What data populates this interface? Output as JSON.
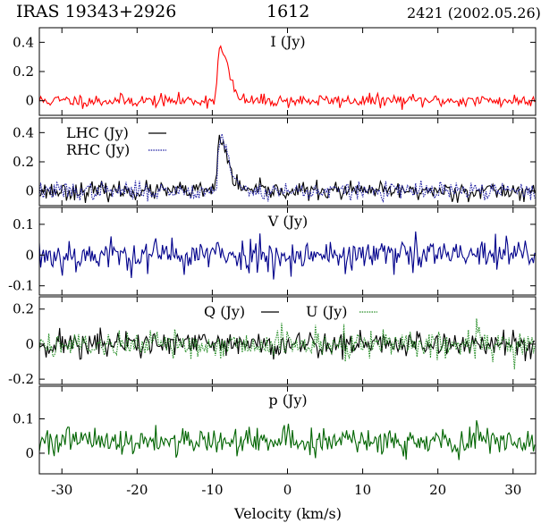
{
  "header": {
    "source": "IRAS 19343+2926",
    "line": "1612",
    "obs": "2421 (2002.05.26)"
  },
  "chart_data": [
    {
      "type": "line",
      "panel": "I",
      "title": "I (Jy)",
      "ylim": [
        -0.1,
        0.5
      ],
      "yticks": [
        0,
        0.2,
        0.4
      ],
      "yticklabels": [
        "0",
        "0.2",
        "0.4"
      ],
      "xlim": [
        -33,
        33
      ],
      "series": [
        {
          "name": "",
          "color": "#ff0000",
          "style": "solid",
          "baseline": 0.0,
          "noise": 0.022,
          "seed": 11,
          "peaks": [
            {
              "center": -9.1,
              "amp": 0.34,
              "width_left": 0.25,
              "width_right": 0.9
            },
            {
              "center": -8.0,
              "amp": 0.08,
              "width_left": 0.5,
              "width_right": 0.9
            }
          ]
        }
      ]
    },
    {
      "type": "line",
      "panel": "LHC/RHC",
      "title": "",
      "ylim": [
        -0.1,
        0.5
      ],
      "yticks": [
        0,
        0.2,
        0.4
      ],
      "yticklabels": [
        "0",
        "0.2",
        "0.4"
      ],
      "xlim": [
        -33,
        33
      ],
      "series": [
        {
          "name": "LHC (Jy)",
          "color": "#000000",
          "style": "solid",
          "baseline": 0.0,
          "noise": 0.03,
          "seed": 23,
          "peaks": [
            {
              "center": -9.1,
              "amp": 0.33,
              "width_left": 0.25,
              "width_right": 0.9
            },
            {
              "center": -8.0,
              "amp": 0.08,
              "width_left": 0.5,
              "width_right": 0.9
            }
          ]
        },
        {
          "name": "RHC (Jy)",
          "color": "#1a1aa0",
          "style": "dotted",
          "baseline": 0.0,
          "noise": 0.03,
          "seed": 37,
          "peaks": [
            {
              "center": -9.0,
              "amp": 0.34,
              "width_left": 0.25,
              "width_right": 0.9
            },
            {
              "center": -7.9,
              "amp": 0.09,
              "width_left": 0.5,
              "width_right": 0.9
            }
          ]
        }
      ]
    },
    {
      "type": "line",
      "panel": "V",
      "title": "V (Jy)",
      "ylim": [
        -0.13,
        0.155
      ],
      "yticks": [
        -0.1,
        0,
        0.1
      ],
      "yticklabels": [
        "-0.1",
        "0",
        "0.1"
      ],
      "xlim": [
        -33,
        33
      ],
      "series": [
        {
          "name": "",
          "color": "#00008b",
          "style": "solid",
          "baseline": 0.0,
          "noise": 0.028,
          "seed": 53,
          "peaks": []
        }
      ]
    },
    {
      "type": "line",
      "panel": "Q/U",
      "title": "",
      "ylim": [
        -0.23,
        0.27
      ],
      "yticks": [
        -0.2,
        0,
        0.2
      ],
      "yticklabels": [
        "-0.2",
        "0",
        "0.2"
      ],
      "xlim": [
        -33,
        33
      ],
      "series": [
        {
          "name": "Q (Jy)",
          "color": "#000000",
          "style": "solid",
          "baseline": 0.0,
          "noise": 0.04,
          "seed": 71,
          "peaks": []
        },
        {
          "name": "U (Jy)",
          "color": "#228b22",
          "style": "dotted",
          "baseline": 0.0,
          "noise": 0.04,
          "seed": 89,
          "peaks": [
            {
              "center": 25.3,
              "amp": 0.14,
              "width_left": 0.15,
              "width_right": 0.15
            }
          ]
        }
      ]
    },
    {
      "type": "line",
      "panel": "p",
      "title": "p (Jy)",
      "ylim": [
        -0.06,
        0.195
      ],
      "yticks": [
        0,
        0.1
      ],
      "yticklabels": [
        "0",
        "0.1"
      ],
      "xlim": [
        -33,
        33
      ],
      "series": [
        {
          "name": "",
          "color": "#006400",
          "style": "solid",
          "baseline": 0.035,
          "noise": 0.02,
          "seed": 101,
          "peaks": [
            {
              "center": 25.2,
              "amp": 0.08,
              "width_left": 0.15,
              "width_right": 0.15
            }
          ]
        }
      ]
    }
  ],
  "xaxis": {
    "label": "Velocity (km/s)",
    "ticks": [
      -30,
      -20,
      -10,
      0,
      10,
      20,
      30
    ],
    "ticklabels": [
      "-30",
      "-20",
      "-10",
      "0",
      "10",
      "20",
      "30"
    ]
  }
}
